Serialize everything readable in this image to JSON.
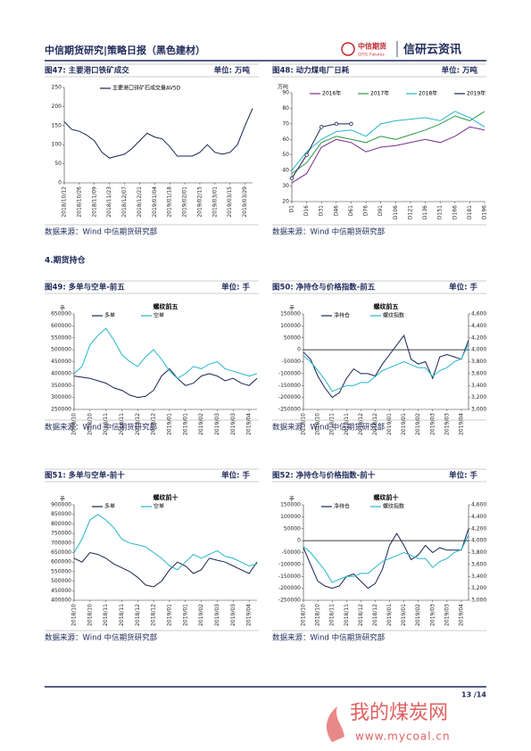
{
  "header": {
    "title": "中信期货研究|策略日报（黑色建材）",
    "logo_cn": "中信期货",
    "logo_en": "CITIC Futures",
    "brand": "信研云资讯"
  },
  "section": "4.期货持仓",
  "footer": {
    "page": "13 /14",
    "watermark": "我的煤炭网",
    "watermark_url": "www.mycoal.cn"
  },
  "chart_data": [
    {
      "type": "line",
      "figure_title": "图47: 主要港口铁矿成交",
      "unit": "单位: 万吨",
      "source": "数据来源：Wind  中信期货研究部",
      "categories": [
        "2018/10/12",
        null,
        "2018/10/26",
        null,
        "2018/11/09",
        null,
        "2018/11/23",
        null,
        "2018/12/07",
        null,
        "2018/12/21",
        null,
        "2019/01/04",
        null,
        "2019/01/18",
        null,
        "2019/02/01",
        null,
        "2019/02/15",
        null,
        "2019/03/01",
        null,
        "2019/03/15",
        null,
        "2019/03/29",
        null
      ],
      "series": [
        {
          "name": "主要港口铁矿石成交量AV5D",
          "color": "#1a2350",
          "values": [
            160,
            140,
            135,
            125,
            110,
            80,
            65,
            70,
            75,
            90,
            110,
            130,
            120,
            115,
            95,
            70,
            70,
            70,
            80,
            100,
            80,
            75,
            80,
            100,
            150,
            195
          ]
        }
      ],
      "ylim": [
        0,
        250
      ],
      "yticks": [
        0,
        50,
        100,
        150,
        200,
        250
      ],
      "legend": "top"
    },
    {
      "type": "line",
      "figure_title": "图48: 动力煤电厂日耗",
      "unit": "单位: 万吨",
      "source": "数据来源：Wind  中信期货研究部",
      "ylabel": "万吨",
      "categories": [
        "D1",
        "D16",
        "D31",
        "D46",
        "D61",
        "D76",
        "D91",
        "D106",
        "D121",
        "D136",
        "D151",
        "D166",
        "D181",
        "D196"
      ],
      "series": [
        {
          "name": "2016年",
          "color": "#7b2d8e",
          "values": [
            32,
            38,
            55,
            60,
            58,
            52,
            55,
            56,
            58,
            60,
            58,
            62,
            68,
            66
          ]
        },
        {
          "name": "2017年",
          "color": "#2e9a4a",
          "values": [
            38,
            45,
            58,
            62,
            60,
            58,
            62,
            60,
            63,
            66,
            70,
            75,
            72,
            78
          ]
        },
        {
          "name": "2018年",
          "color": "#25b5c8",
          "values": [
            40,
            52,
            60,
            65,
            66,
            62,
            70,
            72,
            73,
            74,
            72,
            78,
            74,
            68
          ]
        },
        {
          "name": "2019年",
          "color": "#1a2350",
          "marker": "circle",
          "values": [
            35,
            50,
            68,
            70,
            70,
            null,
            null,
            null,
            null,
            null,
            null,
            null,
            null,
            null
          ]
        }
      ],
      "ylim": [
        20,
        90
      ],
      "yticks": [
        20,
        30,
        40,
        50,
        60,
        70,
        80,
        90
      ],
      "legend": "top"
    },
    {
      "type": "line",
      "figure_title": "图49: 多单与空单-前五",
      "unit": "单位: 手",
      "source": "数据来源：Wind  中信期货研究部",
      "title": "螺纹前五",
      "ylabel": "手",
      "categories": [
        "2018/10",
        null,
        "2018/10",
        null,
        "2018/11",
        null,
        "2018/11",
        null,
        "2018/12",
        null,
        "2018/12",
        null,
        "2019/01",
        null,
        "2019/01",
        null,
        "2019/02",
        null,
        "2019/03",
        null,
        "2019/03",
        null,
        "2019/04",
        null
      ],
      "series": [
        {
          "name": "多单",
          "color": "#1a2350",
          "values": [
            390000,
            385000,
            380000,
            370000,
            360000,
            340000,
            330000,
            310000,
            300000,
            305000,
            330000,
            390000,
            420000,
            380000,
            350000,
            360000,
            390000,
            400000,
            390000,
            370000,
            380000,
            360000,
            350000,
            380000
          ]
        },
        {
          "name": "空单",
          "color": "#25b5c8",
          "values": [
            400000,
            430000,
            520000,
            560000,
            590000,
            540000,
            480000,
            450000,
            430000,
            470000,
            500000,
            460000,
            410000,
            380000,
            400000,
            430000,
            420000,
            440000,
            450000,
            420000,
            410000,
            400000,
            390000,
            400000
          ]
        }
      ],
      "ylim": [
        250000,
        650000
      ],
      "yticks": [
        250000,
        300000,
        350000,
        400000,
        450000,
        500000,
        550000,
        600000,
        650000
      ],
      "legend": "top"
    },
    {
      "type": "line",
      "figure_title": "图50: 净持仓与价格指数-前五",
      "unit": "单位: 手",
      "source": "数据来源：Wind  中信期货研究部",
      "title": "螺纹前五",
      "ylabel": "手",
      "categories": [
        "2018/10",
        null,
        "2018/10",
        null,
        "2018/11",
        null,
        "2018/11",
        null,
        "2018/12",
        null,
        "2018/12",
        null,
        "2019/01",
        null,
        "2019/01",
        null,
        "2019/02",
        null,
        "2019/03",
        null,
        "2019/03",
        null,
        "2019/04",
        null
      ],
      "series": [
        {
          "name": "净持仓",
          "color": "#1a2350",
          "values": [
            -10000,
            -40000,
            -110000,
            -160000,
            -200000,
            -180000,
            -120000,
            -80000,
            -100000,
            -100000,
            -110000,
            -60000,
            -20000,
            20000,
            60000,
            -40000,
            -60000,
            -50000,
            -120000,
            -30000,
            -20000,
            -30000,
            -40000,
            40000
          ]
        },
        {
          "name": "螺纹指数",
          "color": "#25b5c8",
          "axis": "y2",
          "values": [
            3900,
            3800,
            3650,
            3500,
            3300,
            3350,
            3400,
            3400,
            3450,
            3450,
            3550,
            3650,
            3700,
            3750,
            3800,
            3750,
            3700,
            3700,
            3550,
            3650,
            3700,
            3800,
            3850,
            4100
          ]
        }
      ],
      "ylim": [
        -250000,
        150000
      ],
      "yticks": [
        -250000,
        -200000,
        -150000,
        -100000,
        -50000,
        0,
        50000,
        100000,
        150000
      ],
      "y2lim": [
        3000,
        4600
      ],
      "y2ticks": [
        {
          "value": 3000,
          "label": "3,000"
        },
        {
          "value": 3200,
          "label": "3,200"
        },
        {
          "value": 3400,
          "label": "3,400"
        },
        {
          "value": 3600,
          "label": "3,600"
        },
        {
          "value": 3800,
          "label": "3,800"
        },
        {
          "value": 4000,
          "label": "4,000"
        },
        {
          "value": 4200,
          "label": "4,200"
        },
        {
          "value": 4400,
          "label": "4,400"
        },
        {
          "value": 4600,
          "label": "4,600"
        }
      ],
      "legend": "top"
    },
    {
      "type": "line",
      "figure_title": "图51: 多单与空单-前十",
      "unit": "单位: 手",
      "source": "数据来源：Wind  中信期货研究部",
      "title": "螺纹前十",
      "ylabel": "手",
      "categories": [
        "2018/10",
        null,
        "2018/10",
        null,
        "2018/11",
        null,
        "2018/11",
        null,
        "2018/12",
        null,
        "2018/12",
        null,
        "2019/01",
        null,
        "2019/01",
        null,
        "2019/02",
        null,
        "2019/03",
        null,
        "2019/03",
        null,
        "2019/04",
        null
      ],
      "series": [
        {
          "name": "多单",
          "color": "#1a2350",
          "values": [
            620000,
            600000,
            650000,
            640000,
            620000,
            590000,
            570000,
            550000,
            520000,
            480000,
            470000,
            500000,
            560000,
            600000,
            580000,
            540000,
            560000,
            620000,
            610000,
            600000,
            580000,
            560000,
            540000,
            600000
          ]
        },
        {
          "name": "空单",
          "color": "#25b5c8",
          "values": [
            650000,
            720000,
            820000,
            850000,
            820000,
            780000,
            720000,
            700000,
            690000,
            680000,
            650000,
            620000,
            580000,
            560000,
            600000,
            640000,
            620000,
            640000,
            660000,
            630000,
            620000,
            600000,
            580000,
            590000
          ]
        }
      ],
      "ylim": [
        400000,
        900000
      ],
      "yticks": [
        400000,
        450000,
        500000,
        550000,
        600000,
        650000,
        700000,
        750000,
        800000,
        850000,
        900000
      ],
      "legend": "top"
    },
    {
      "type": "line",
      "figure_title": "图52: 净持仓与价格指数-前十",
      "unit": "单位: 手",
      "source": "数据来源：Wind  中信期货研究部",
      "title": "螺纹前十",
      "ylabel": "手",
      "categories": [
        "2018/10",
        null,
        "2018/10",
        null,
        "2018/11",
        null,
        "2018/11",
        null,
        "2018/12",
        null,
        "2018/12",
        null,
        "2019/01",
        null,
        "2019/01",
        null,
        "2019/02",
        null,
        "2019/03",
        null,
        "2019/03",
        null,
        "2019/04",
        null
      ],
      "series": [
        {
          "name": "净持仓",
          "color": "#1a2350",
          "values": [
            -30000,
            -100000,
            -170000,
            -190000,
            -200000,
            -190000,
            -150000,
            -140000,
            -170000,
            -200000,
            -180000,
            -120000,
            -20000,
            30000,
            -20000,
            -80000,
            -60000,
            -20000,
            -50000,
            -30000,
            -40000,
            -40000,
            -40000,
            50000
          ]
        },
        {
          "name": "螺纹指数",
          "color": "#25b5c8",
          "axis": "y2",
          "values": [
            3900,
            3800,
            3650,
            3500,
            3300,
            3350,
            3400,
            3400,
            3450,
            3450,
            3550,
            3650,
            3700,
            3750,
            3800,
            3750,
            3700,
            3700,
            3550,
            3650,
            3700,
            3800,
            3850,
            4100
          ]
        }
      ],
      "ylim": [
        -250000,
        150000
      ],
      "yticks": [
        -250000,
        -200000,
        -150000,
        -100000,
        -50000,
        0,
        50000,
        100000,
        150000
      ],
      "y2lim": [
        3000,
        4600
      ],
      "y2ticks": [
        {
          "value": 3000,
          "label": "3,000"
        },
        {
          "value": 3200,
          "label": "3,200"
        },
        {
          "value": 3400,
          "label": "3,400"
        },
        {
          "value": 3600,
          "label": "3,600"
        },
        {
          "value": 3800,
          "label": "3,800"
        },
        {
          "value": 4000,
          "label": "4,000"
        },
        {
          "value": 4200,
          "label": "4,200"
        },
        {
          "value": 4400,
          "label": "4,400"
        },
        {
          "value": 4600,
          "label": "4,600"
        }
      ],
      "legend": "top"
    }
  ]
}
